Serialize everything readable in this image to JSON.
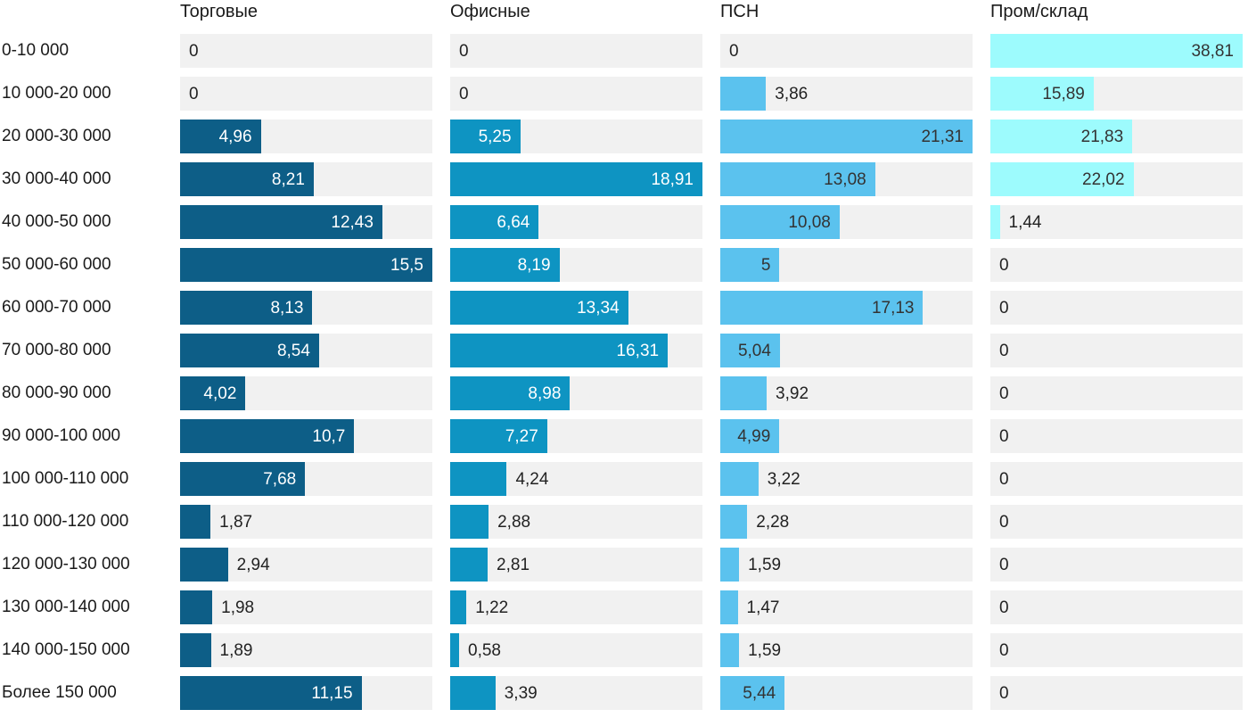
{
  "chart_data": {
    "type": "bar",
    "orientation": "horizontal",
    "title": "",
    "legend": false,
    "grid": false,
    "value_labels": true,
    "track_color": "#f1f1f1",
    "label_color_outside": "#222222",
    "categories": [
      "0-10 000",
      "10 000-20 000",
      "20 000-30 000",
      "30 000-40 000",
      "40 000-50 000",
      "50 000-60 000",
      "60 000-70 000",
      "70 000-80 000",
      "80 000-90 000",
      "90 000-100 000",
      "100 000-110 000",
      "110 000-120 000",
      "120 000-130 000",
      "130 000-140 000",
      "140 000-150 000",
      "Более 150 000"
    ],
    "series": [
      {
        "name": "Торговые",
        "color": "#0d5e87",
        "label_color_inside": "#ffffff",
        "axis_max": 15.5,
        "values": [
          0,
          0,
          4.96,
          8.21,
          12.43,
          15.5,
          8.13,
          8.54,
          4.02,
          10.7,
          7.68,
          1.87,
          2.94,
          1.98,
          1.89,
          11.15
        ],
        "labels": [
          "0",
          "0",
          "4,96",
          "8,21",
          "12,43",
          "15,5",
          "8,13",
          "8,54",
          "4,02",
          "10,7",
          "7,68",
          "1,87",
          "2,94",
          "1,98",
          "1,89",
          "11,15"
        ]
      },
      {
        "name": "Офисные",
        "color": "#0e94c2",
        "label_color_inside": "#ffffff",
        "axis_max": 18.91,
        "values": [
          0,
          0,
          5.25,
          18.91,
          6.64,
          8.19,
          13.34,
          16.31,
          8.98,
          7.27,
          4.24,
          2.88,
          2.81,
          1.22,
          0.58,
          3.39
        ],
        "labels": [
          "0",
          "0",
          "5,25",
          "18,91",
          "6,64",
          "8,19",
          "13,34",
          "16,31",
          "8,98",
          "7,27",
          "4,24",
          "2,88",
          "2,81",
          "1,22",
          "0,58",
          "3,39"
        ]
      },
      {
        "name": "ПСН",
        "color": "#5bc2ee",
        "label_color_inside": "#333333",
        "axis_max": 21.31,
        "values": [
          0,
          3.86,
          21.31,
          13.08,
          10.08,
          5,
          17.13,
          5.04,
          3.92,
          4.99,
          3.22,
          2.28,
          1.59,
          1.47,
          1.59,
          5.44
        ],
        "labels": [
          "0",
          "3,86",
          "21,31",
          "13,08",
          "10,08",
          "5",
          "17,13",
          "5,04",
          "3,92",
          "4,99",
          "3,22",
          "2,28",
          "1,59",
          "1,47",
          "1,59",
          "5,44"
        ]
      },
      {
        "name": "Пром/склад",
        "color": "#9dfbfd",
        "label_color_inside": "#333333",
        "axis_max": 38.81,
        "values": [
          38.81,
          15.89,
          21.83,
          22.02,
          1.44,
          0,
          0,
          0,
          0,
          0,
          0,
          0,
          0,
          0,
          0,
          0
        ],
        "labels": [
          "38,81",
          "15,89",
          "21,83",
          "22,02",
          "1,44",
          "0",
          "0",
          "0",
          "0",
          "0",
          "0",
          "0",
          "0",
          "0",
          "0",
          "0"
        ]
      }
    ]
  }
}
